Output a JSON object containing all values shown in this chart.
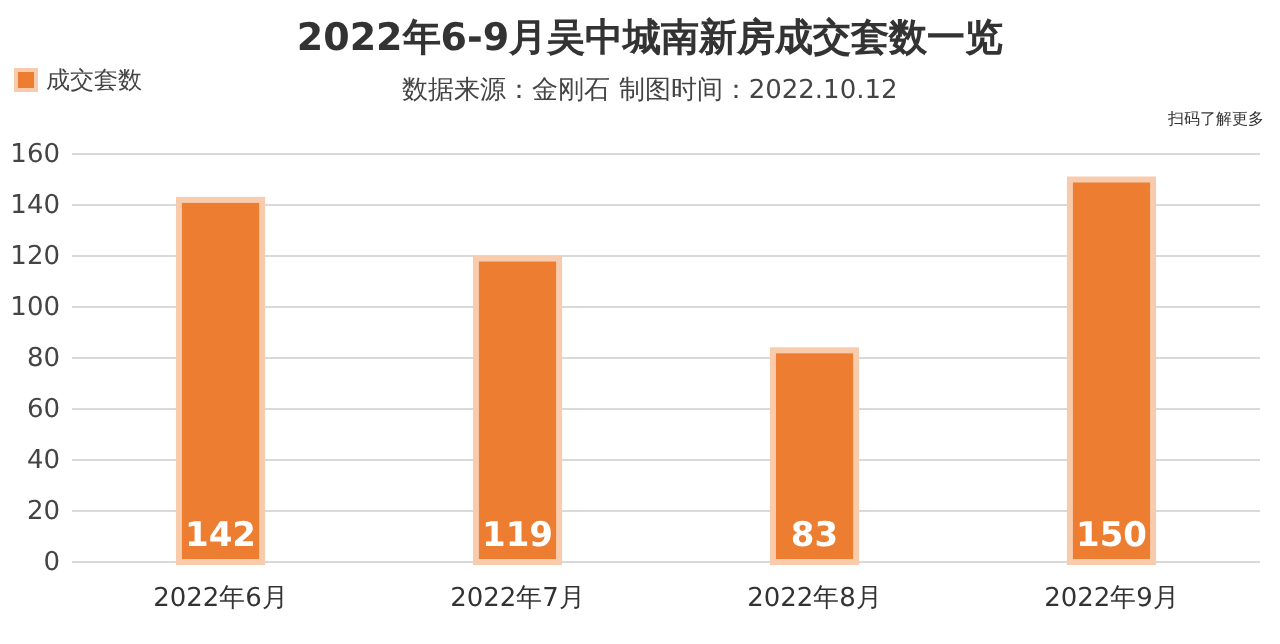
{
  "chart_data": {
    "type": "bar",
    "title": "2022年6-9月吴中城南新房成交套数一览",
    "subtitle": "数据来源：金刚石 制图时间：2022.10.12",
    "categories": [
      "2022年6月",
      "2022年7月",
      "2022年8月",
      "2022年9月"
    ],
    "series": [
      {
        "name": "成交套数",
        "color": "#ed7d31",
        "values": [
          142,
          119,
          83,
          150
        ]
      }
    ],
    "ylim": [
      0,
      160
    ],
    "yticks": [
      0,
      20,
      40,
      60,
      80,
      100,
      120,
      140,
      160
    ],
    "grid": "y",
    "legend": "top left",
    "data_labels": true,
    "annotations": [
      "扫码了解更多"
    ]
  }
}
